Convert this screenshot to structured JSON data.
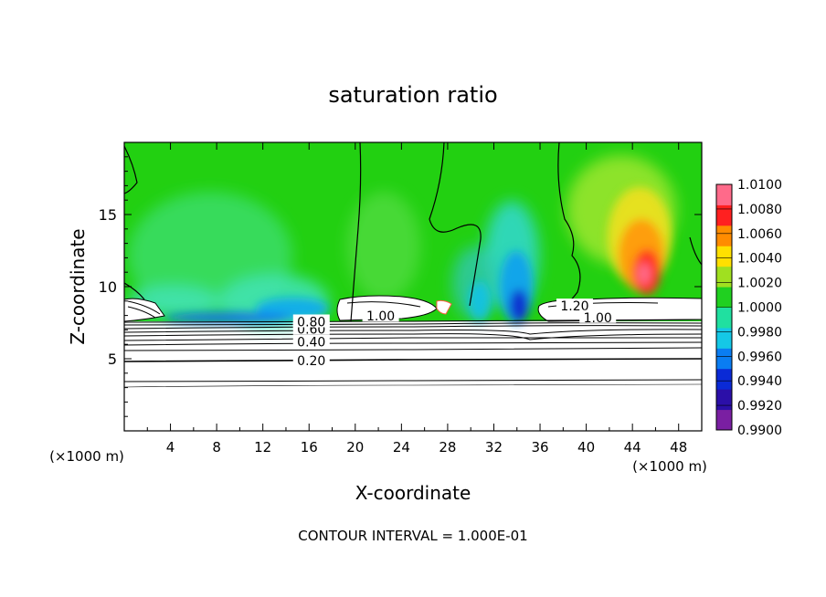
{
  "chart_data": {
    "type": "heatmap",
    "title": "saturation ratio",
    "xlabel": "X-coordinate",
    "ylabel": "Z-coordinate",
    "x_unit_label_left": "(×1000 m)",
    "x_unit_label_right": "(×1000 m)",
    "footer": "CONTOUR INTERVAL = 1.000E-01",
    "xlim": [
      0,
      50
    ],
    "ylim": [
      0,
      20
    ],
    "x_ticks": [
      4,
      8,
      12,
      16,
      20,
      24,
      28,
      32,
      36,
      40,
      44,
      48
    ],
    "y_ticks": [
      5,
      10,
      15
    ],
    "colorbar": {
      "min": 0.99,
      "max": 1.01,
      "tick_labels": [
        "1.0100",
        "1.0080",
        "1.0060",
        "1.0040",
        "1.0020",
        "1.0000",
        "0.9980",
        "0.9960",
        "0.9940",
        "0.9920",
        "0.9900"
      ],
      "colors": [
        "#7a1fa2",
        "#2b0fa8",
        "#0a2ad6",
        "#0a7df2",
        "#15c8e6",
        "#20e0a0",
        "#20d020",
        "#a0e020",
        "#ffe000",
        "#ff8c00",
        "#ff2020",
        "#ff6a8a"
      ]
    },
    "contour_labels": [
      {
        "text": "0.20",
        "x": 16.2,
        "z": 4.8
      },
      {
        "text": "0.40",
        "x": 16.2,
        "z": 6.1
      },
      {
        "text": "0.60",
        "x": 16.2,
        "z": 7.0
      },
      {
        "text": "0.80",
        "x": 16.2,
        "z": 7.5
      },
      {
        "text": "1.00",
        "x": 22.2,
        "z": 7.9
      },
      {
        "text": "1.20",
        "x": 39.0,
        "z": 8.6
      },
      {
        "text": "1.00",
        "x": 41.0,
        "z": 7.8
      }
    ],
    "features": {
      "background_value": 1.0,
      "cloud_regions_z_range": [
        8.0,
        9.2
      ],
      "supersaturated_max_near": {
        "x": 45,
        "z": 11,
        "value": 1.008
      },
      "subsaturated_min_near": {
        "x": 33.5,
        "z": 9,
        "value": 0.992
      }
    }
  }
}
